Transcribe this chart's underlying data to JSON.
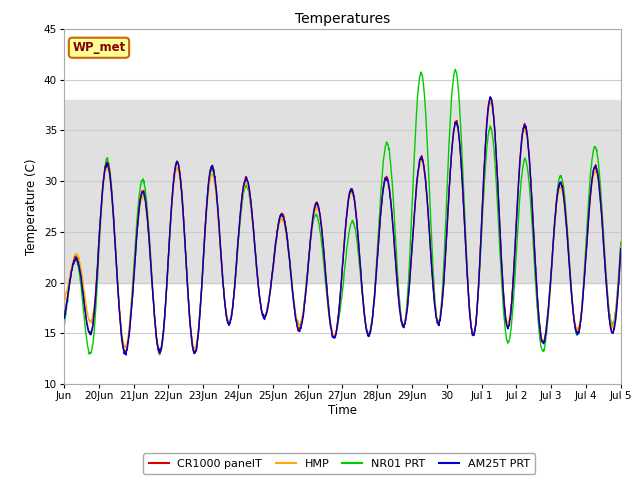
{
  "title": "Temperatures",
  "xlabel": "Time",
  "ylabel": "Temperature (C)",
  "ylim": [
    10,
    45
  ],
  "yticks": [
    10,
    15,
    20,
    25,
    30,
    35,
    40,
    45
  ],
  "shade_ymin": 20,
  "shade_ymax": 38,
  "shade_color": "#e0e0e0",
  "bg_color": "#ffffff",
  "grid_color": "#cccccc",
  "label_box_text": "WP_met",
  "label_box_facecolor": "#ffff99",
  "label_box_edgecolor": "#cc6600",
  "label_box_textcolor": "#880000",
  "series": {
    "CR1000 panelT": {
      "color": "#dd0000",
      "lw": 1.0
    },
    "HMP": {
      "color": "#ffaa00",
      "lw": 1.0
    },
    "NR01 PRT": {
      "color": "#00cc00",
      "lw": 1.0
    },
    "AM25T PRT": {
      "color": "#0000cc",
      "lw": 1.0
    }
  },
  "x_tick_labels": [
    "Jun",
    "20Jun",
    "21Jun",
    "22Jun",
    "23Jun",
    "24Jun",
    "25Jun",
    "26Jun",
    "27Jun",
    "28Jun",
    "29Jun",
    "30",
    "Jul 1",
    "Jul 2",
    "Jul 3",
    "Jul 4",
    "Jul 5"
  ],
  "x_tick_positions": [
    0,
    1,
    2,
    3,
    4,
    5,
    6,
    7,
    8,
    9,
    10,
    11,
    12,
    13,
    14,
    15,
    16
  ],
  "daily_maxes_cr": [
    18,
    33,
    28,
    32,
    31.5,
    31.5,
    26.5,
    27.5,
    29,
    30,
    31.5,
    35,
    38.5,
    37.5,
    29.5,
    31,
    33
  ],
  "daily_mins_cr": [
    15,
    15,
    12.5,
    13.5,
    13,
    17,
    16.5,
    15,
    14.5,
    15,
    16,
    16,
    14.5,
    16,
    13.5,
    15.5,
    15
  ],
  "daily_maxes_hmp": [
    18.5,
    32.5,
    27.5,
    31.5,
    30.5,
    31.0,
    26.0,
    27.0,
    28.5,
    30.0,
    31.0,
    35.0,
    38.0,
    37.0,
    29.0,
    30.5,
    32.5
  ],
  "daily_mins_hmp": [
    18,
    15.5,
    13.0,
    13.5,
    13.5,
    17.0,
    16.5,
    15.5,
    14.5,
    15.0,
    16.0,
    16.0,
    14.5,
    16.5,
    13.5,
    16.0,
    15.5
  ],
  "daily_maxes_nr": [
    18,
    33,
    29.5,
    32,
    31.5,
    30.5,
    26.5,
    27.5,
    24,
    31.5,
    40,
    42.5,
    36,
    33,
    29.5,
    33.5,
    33
  ],
  "daily_mins_nr": [
    13,
    13,
    13,
    13,
    13,
    17,
    16.5,
    15.5,
    14.5,
    15,
    16,
    16,
    14.5,
    14,
    13,
    15.5,
    16
  ],
  "daily_maxes_am": [
    18,
    33,
    28,
    32,
    31.5,
    31.5,
    26.5,
    27.5,
    29,
    30,
    31.5,
    35,
    38.5,
    37.5,
    29.5,
    31,
    33
  ],
  "daily_mins_am": [
    15,
    15,
    12.5,
    13.5,
    13,
    17,
    16.5,
    15,
    14.5,
    15,
    16,
    16,
    14.5,
    16,
    13.5,
    15.5,
    15
  ]
}
